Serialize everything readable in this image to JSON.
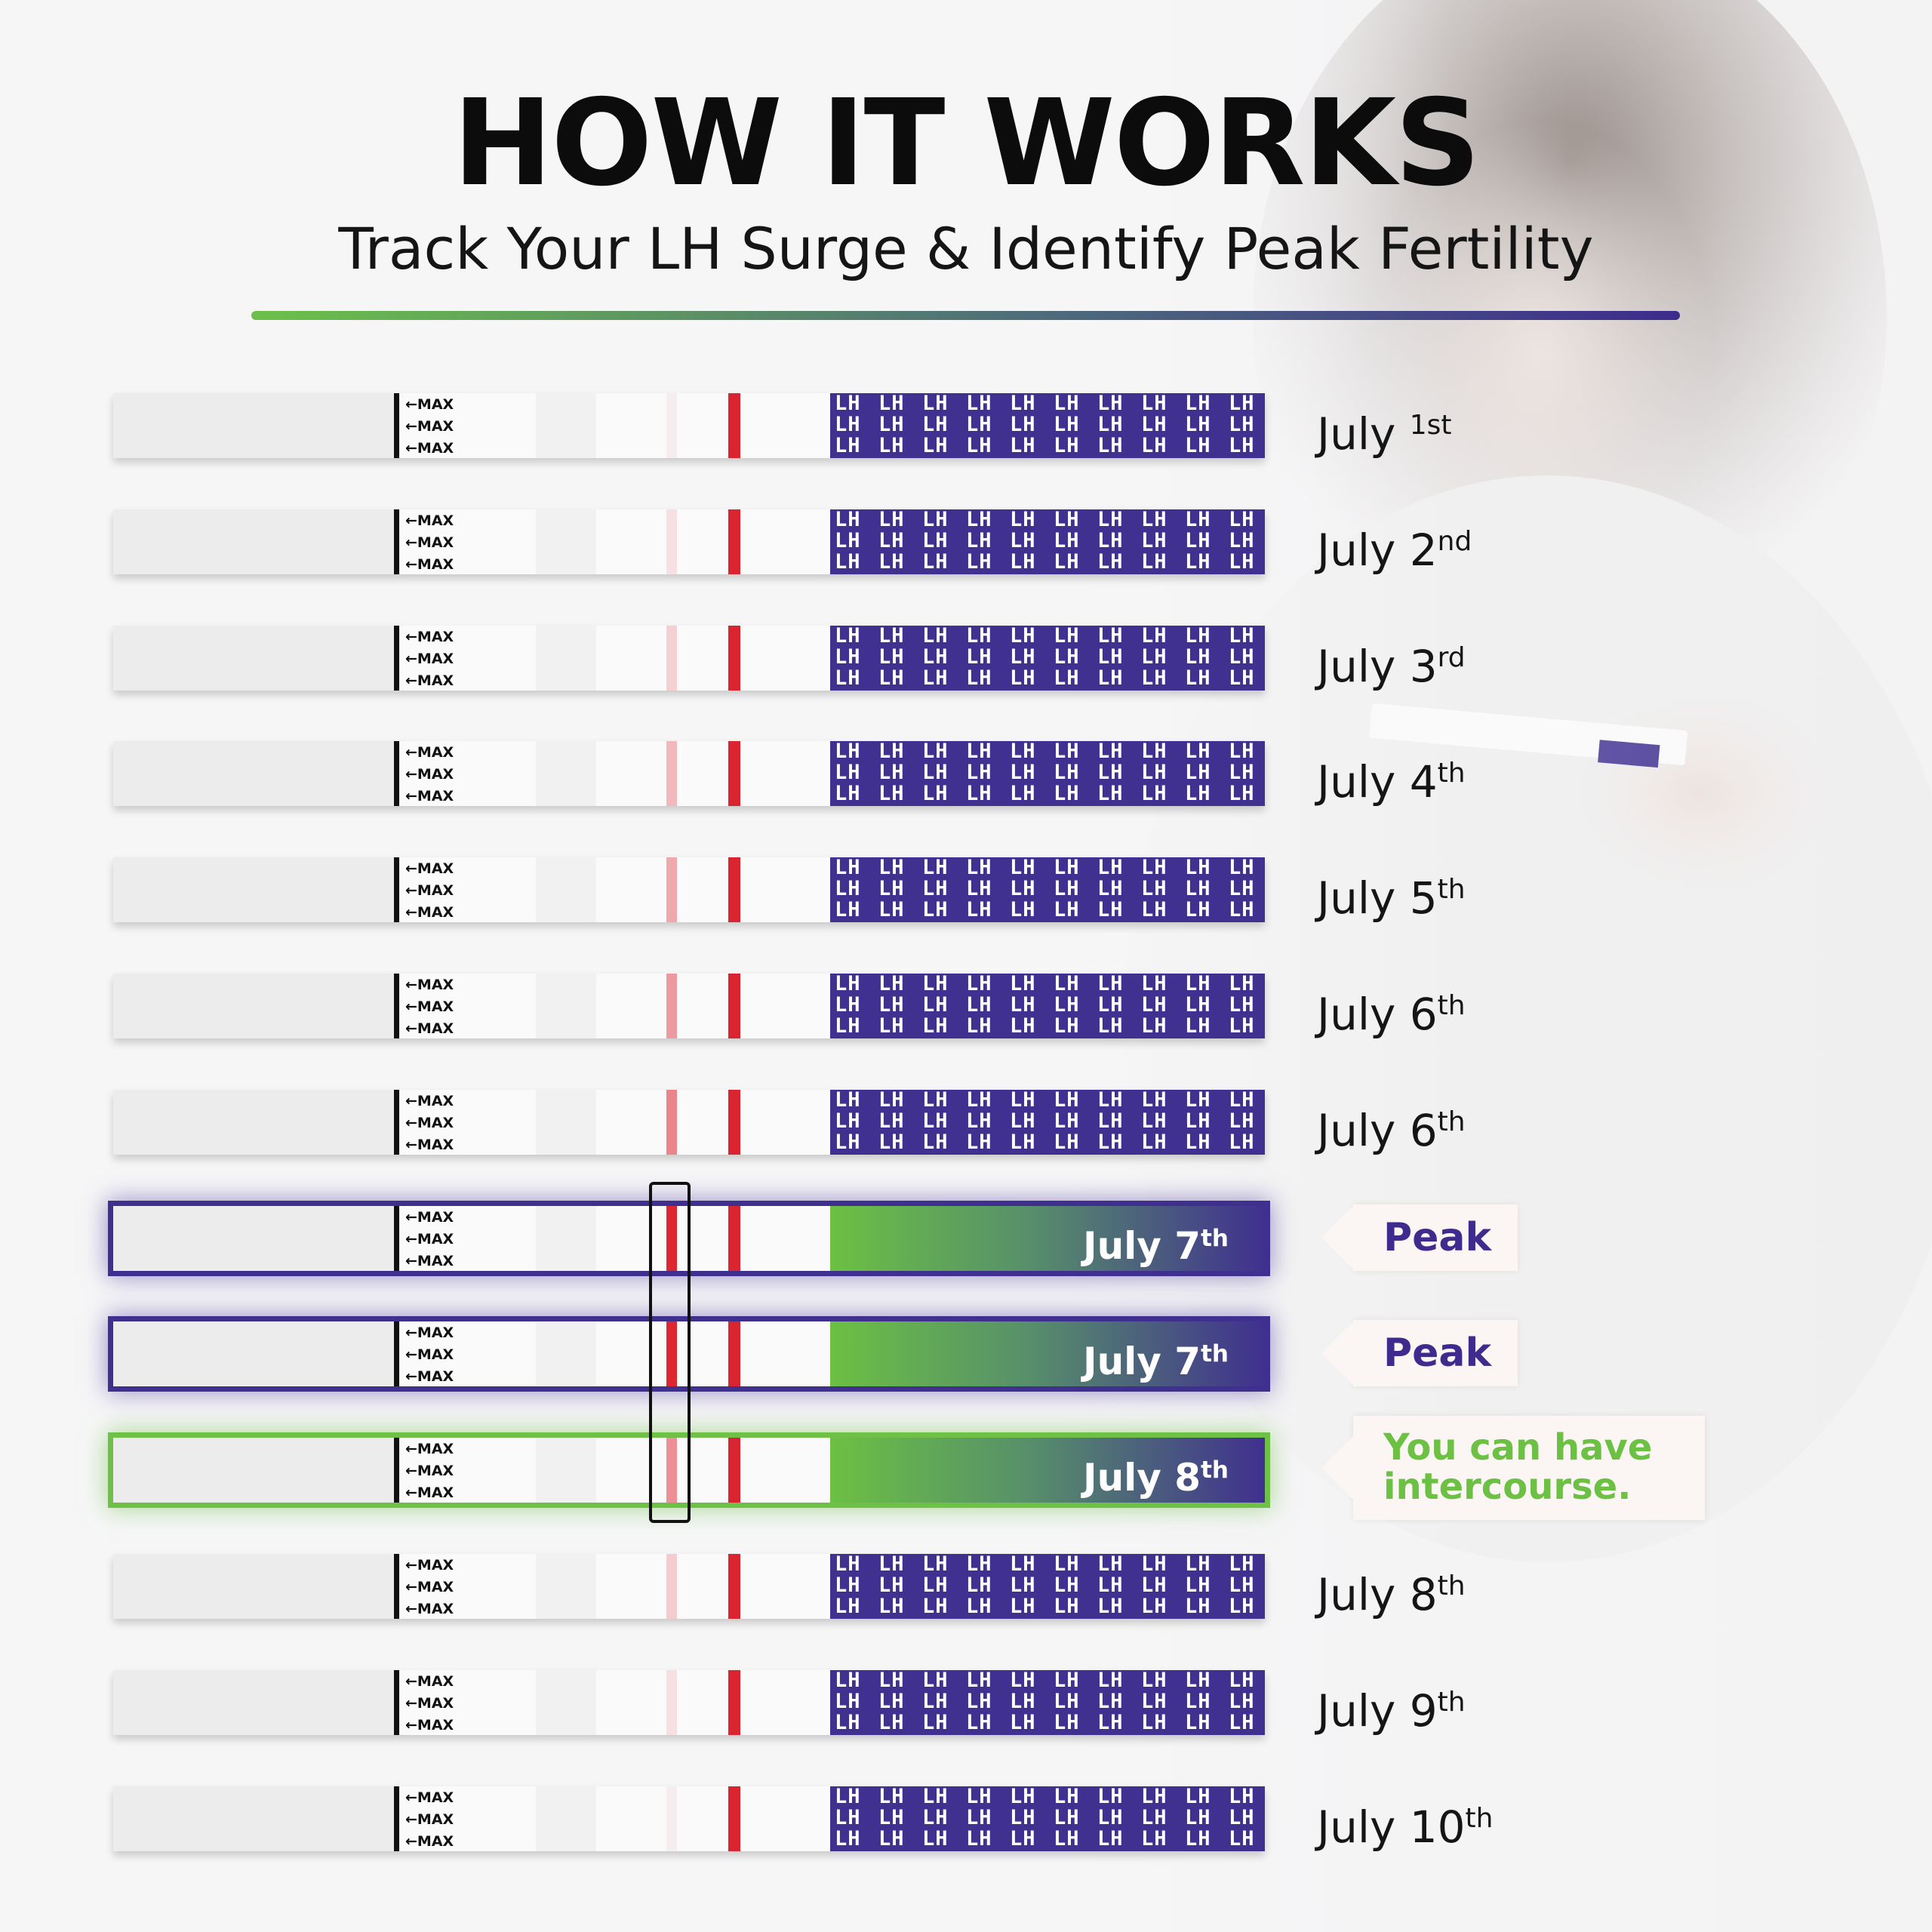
{
  "title": "HOW IT WORKS",
  "subtitle": "Track Your LH Surge & Identify Peak Fertility",
  "colors": {
    "brand_purple": "#40308f",
    "brand_green": "#6cc043",
    "test_line_red": "#dd2630"
  },
  "strip_text": {
    "max_label": "←MAX",
    "band_text": "LH"
  },
  "tests": [
    {
      "date": "July ",
      "suffix": "1st",
      "test_line_intensity": 0.0,
      "variant": "normal"
    },
    {
      "date": "July 2",
      "suffix": "nd",
      "test_line_intensity": 0.12,
      "variant": "normal"
    },
    {
      "date": "July 3",
      "suffix": "rd",
      "test_line_intensity": 0.2,
      "variant": "normal"
    },
    {
      "date": "July 4",
      "suffix": "th",
      "test_line_intensity": 0.3,
      "variant": "normal"
    },
    {
      "date": "July 5",
      "suffix": "th",
      "test_line_intensity": 0.38,
      "variant": "normal"
    },
    {
      "date": "July 6",
      "suffix": "th",
      "test_line_intensity": 0.45,
      "variant": "normal"
    },
    {
      "date": "July 6",
      "suffix": "th",
      "test_line_intensity": 0.55,
      "variant": "normal"
    },
    {
      "date": "July 7",
      "suffix": "th",
      "test_line_intensity": 1.0,
      "variant": "peak",
      "callout": "Peak"
    },
    {
      "date": "July 7",
      "suffix": "th",
      "test_line_intensity": 1.0,
      "variant": "peak",
      "callout": "Peak"
    },
    {
      "date": "July 8",
      "suffix": "th",
      "test_line_intensity": 0.5,
      "variant": "fertile",
      "callout_line1": "You can have",
      "callout_line2": "intercourse."
    },
    {
      "date": "July 8",
      "suffix": "th",
      "test_line_intensity": 0.22,
      "variant": "normal"
    },
    {
      "date": "July 9",
      "suffix": "th",
      "test_line_intensity": 0.12,
      "variant": "normal"
    },
    {
      "date": "July 10",
      "suffix": "th",
      "test_line_intensity": 0.0,
      "variant": "normal"
    }
  ]
}
